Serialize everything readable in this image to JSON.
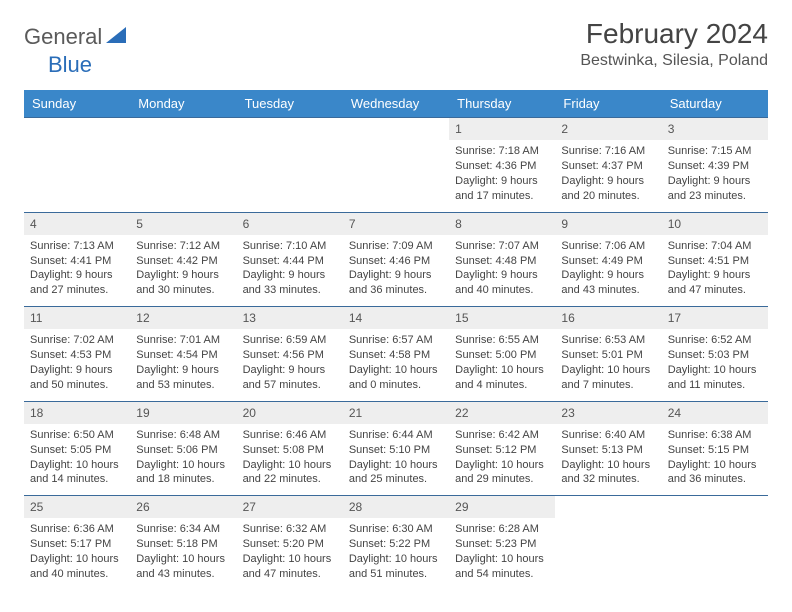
{
  "brand": {
    "part1": "General",
    "part2": "Blue"
  },
  "title": "February 2024",
  "location": "Bestwinka, Silesia, Poland",
  "colors": {
    "header_bg": "#3a87c9",
    "header_text": "#ffffff",
    "daynum_bg": "#eeeeee",
    "border": "#3a6a9a",
    "text": "#444444",
    "logo_gray": "#5a5a5a",
    "logo_blue": "#2a6db8"
  },
  "day_names": [
    "Sunday",
    "Monday",
    "Tuesday",
    "Wednesday",
    "Thursday",
    "Friday",
    "Saturday"
  ],
  "weeks": [
    [
      {
        "n": "",
        "sr": "",
        "ss": "",
        "dl": ""
      },
      {
        "n": "",
        "sr": "",
        "ss": "",
        "dl": ""
      },
      {
        "n": "",
        "sr": "",
        "ss": "",
        "dl": ""
      },
      {
        "n": "",
        "sr": "",
        "ss": "",
        "dl": ""
      },
      {
        "n": "1",
        "sr": "Sunrise: 7:18 AM",
        "ss": "Sunset: 4:36 PM",
        "dl": "Daylight: 9 hours and 17 minutes."
      },
      {
        "n": "2",
        "sr": "Sunrise: 7:16 AM",
        "ss": "Sunset: 4:37 PM",
        "dl": "Daylight: 9 hours and 20 minutes."
      },
      {
        "n": "3",
        "sr": "Sunrise: 7:15 AM",
        "ss": "Sunset: 4:39 PM",
        "dl": "Daylight: 9 hours and 23 minutes."
      }
    ],
    [
      {
        "n": "4",
        "sr": "Sunrise: 7:13 AM",
        "ss": "Sunset: 4:41 PM",
        "dl": "Daylight: 9 hours and 27 minutes."
      },
      {
        "n": "5",
        "sr": "Sunrise: 7:12 AM",
        "ss": "Sunset: 4:42 PM",
        "dl": "Daylight: 9 hours and 30 minutes."
      },
      {
        "n": "6",
        "sr": "Sunrise: 7:10 AM",
        "ss": "Sunset: 4:44 PM",
        "dl": "Daylight: 9 hours and 33 minutes."
      },
      {
        "n": "7",
        "sr": "Sunrise: 7:09 AM",
        "ss": "Sunset: 4:46 PM",
        "dl": "Daylight: 9 hours and 36 minutes."
      },
      {
        "n": "8",
        "sr": "Sunrise: 7:07 AM",
        "ss": "Sunset: 4:48 PM",
        "dl": "Daylight: 9 hours and 40 minutes."
      },
      {
        "n": "9",
        "sr": "Sunrise: 7:06 AM",
        "ss": "Sunset: 4:49 PM",
        "dl": "Daylight: 9 hours and 43 minutes."
      },
      {
        "n": "10",
        "sr": "Sunrise: 7:04 AM",
        "ss": "Sunset: 4:51 PM",
        "dl": "Daylight: 9 hours and 47 minutes."
      }
    ],
    [
      {
        "n": "11",
        "sr": "Sunrise: 7:02 AM",
        "ss": "Sunset: 4:53 PM",
        "dl": "Daylight: 9 hours and 50 minutes."
      },
      {
        "n": "12",
        "sr": "Sunrise: 7:01 AM",
        "ss": "Sunset: 4:54 PM",
        "dl": "Daylight: 9 hours and 53 minutes."
      },
      {
        "n": "13",
        "sr": "Sunrise: 6:59 AM",
        "ss": "Sunset: 4:56 PM",
        "dl": "Daylight: 9 hours and 57 minutes."
      },
      {
        "n": "14",
        "sr": "Sunrise: 6:57 AM",
        "ss": "Sunset: 4:58 PM",
        "dl": "Daylight: 10 hours and 0 minutes."
      },
      {
        "n": "15",
        "sr": "Sunrise: 6:55 AM",
        "ss": "Sunset: 5:00 PM",
        "dl": "Daylight: 10 hours and 4 minutes."
      },
      {
        "n": "16",
        "sr": "Sunrise: 6:53 AM",
        "ss": "Sunset: 5:01 PM",
        "dl": "Daylight: 10 hours and 7 minutes."
      },
      {
        "n": "17",
        "sr": "Sunrise: 6:52 AM",
        "ss": "Sunset: 5:03 PM",
        "dl": "Daylight: 10 hours and 11 minutes."
      }
    ],
    [
      {
        "n": "18",
        "sr": "Sunrise: 6:50 AM",
        "ss": "Sunset: 5:05 PM",
        "dl": "Daylight: 10 hours and 14 minutes."
      },
      {
        "n": "19",
        "sr": "Sunrise: 6:48 AM",
        "ss": "Sunset: 5:06 PM",
        "dl": "Daylight: 10 hours and 18 minutes."
      },
      {
        "n": "20",
        "sr": "Sunrise: 6:46 AM",
        "ss": "Sunset: 5:08 PM",
        "dl": "Daylight: 10 hours and 22 minutes."
      },
      {
        "n": "21",
        "sr": "Sunrise: 6:44 AM",
        "ss": "Sunset: 5:10 PM",
        "dl": "Daylight: 10 hours and 25 minutes."
      },
      {
        "n": "22",
        "sr": "Sunrise: 6:42 AM",
        "ss": "Sunset: 5:12 PM",
        "dl": "Daylight: 10 hours and 29 minutes."
      },
      {
        "n": "23",
        "sr": "Sunrise: 6:40 AM",
        "ss": "Sunset: 5:13 PM",
        "dl": "Daylight: 10 hours and 32 minutes."
      },
      {
        "n": "24",
        "sr": "Sunrise: 6:38 AM",
        "ss": "Sunset: 5:15 PM",
        "dl": "Daylight: 10 hours and 36 minutes."
      }
    ],
    [
      {
        "n": "25",
        "sr": "Sunrise: 6:36 AM",
        "ss": "Sunset: 5:17 PM",
        "dl": "Daylight: 10 hours and 40 minutes."
      },
      {
        "n": "26",
        "sr": "Sunrise: 6:34 AM",
        "ss": "Sunset: 5:18 PM",
        "dl": "Daylight: 10 hours and 43 minutes."
      },
      {
        "n": "27",
        "sr": "Sunrise: 6:32 AM",
        "ss": "Sunset: 5:20 PM",
        "dl": "Daylight: 10 hours and 47 minutes."
      },
      {
        "n": "28",
        "sr": "Sunrise: 6:30 AM",
        "ss": "Sunset: 5:22 PM",
        "dl": "Daylight: 10 hours and 51 minutes."
      },
      {
        "n": "29",
        "sr": "Sunrise: 6:28 AM",
        "ss": "Sunset: 5:23 PM",
        "dl": "Daylight: 10 hours and 54 minutes."
      },
      {
        "n": "",
        "sr": "",
        "ss": "",
        "dl": ""
      },
      {
        "n": "",
        "sr": "",
        "ss": "",
        "dl": ""
      }
    ]
  ]
}
